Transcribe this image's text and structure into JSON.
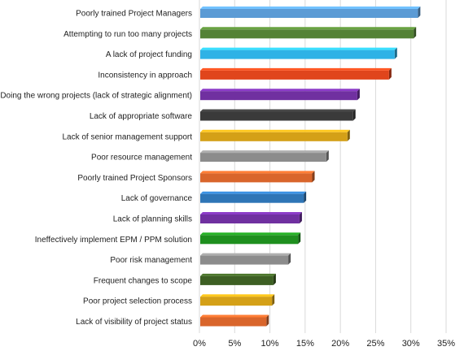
{
  "chart_data": {
    "type": "bar",
    "orientation": "horizontal",
    "bar_style": "3d",
    "categories": [
      "Poorly trained Project Managers",
      "Attempting to run too many projects",
      "A lack of project funding",
      "Inconsistency in approach",
      "Doing the wrong projects (lack of strategic alignment)",
      "Lack of appropriate software",
      "Lack of senior management support",
      "Poor resource management",
      "Poorly trained Project Sponsors",
      "Lack of governance",
      "Lack of planning skills",
      "Ineffectively implement EPM / PPM solution",
      "Poor risk management",
      "Frequent changes to scope",
      "Poor project selection process",
      "Lack of visibility of project status"
    ],
    "values": [
      31.0,
      30.4,
      27.7,
      26.9,
      22.4,
      21.8,
      21.0,
      18.0,
      16.0,
      14.8,
      14.2,
      14.0,
      12.6,
      10.5,
      10.3,
      9.5
    ],
    "colors": [
      "#5b9bd5",
      "#548235",
      "#2eb2e6",
      "#e0451c",
      "#7030a0",
      "#3a3a3a",
      "#d4a017",
      "#8c8c8c",
      "#d9652b",
      "#2e75b6",
      "#7030a0",
      "#1e8f1e",
      "#8c8c8c",
      "#3d5f23",
      "#d4a017",
      "#d9652b"
    ],
    "xlim": [
      0,
      35
    ],
    "x_ticks": [
      "0%",
      "5%",
      "10%",
      "15%",
      "20%",
      "25%",
      "30%",
      "35%"
    ],
    "grid": "vertical",
    "title": "",
    "xlabel": "",
    "ylabel": ""
  }
}
